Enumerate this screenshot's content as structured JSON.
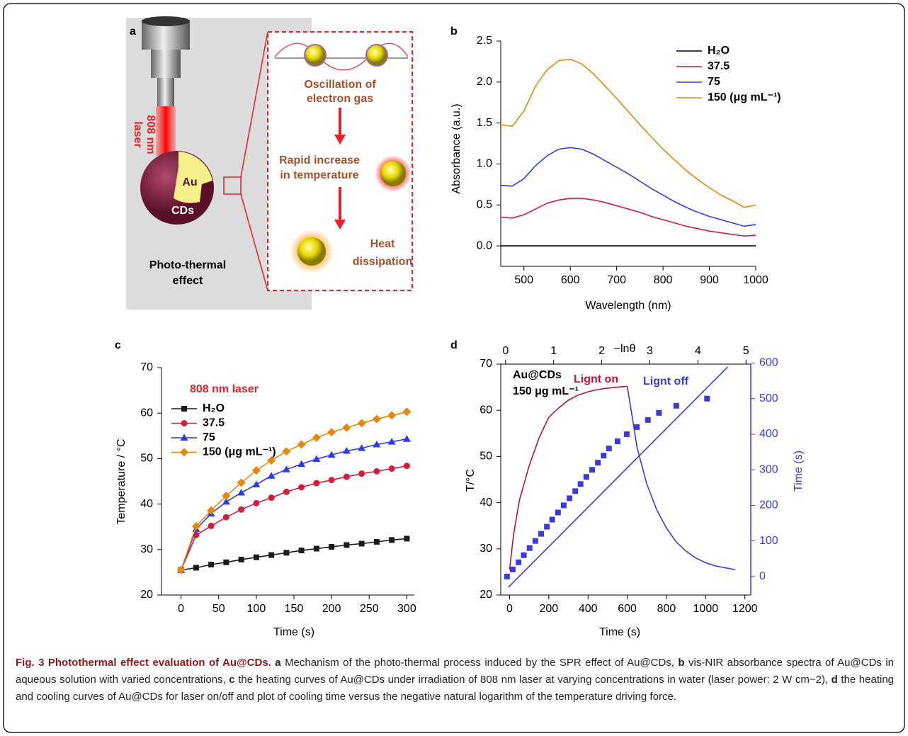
{
  "diagram_a": {
    "panel": "a",
    "laser": [
      "808 nm",
      "laser"
    ],
    "core": "Au",
    "shell": "CDs",
    "effect": [
      "Photo-thermal",
      "effect"
    ],
    "steps": [
      [
        "Oscillation of",
        "electron gas"
      ],
      [
        "Rapid increase",
        "in temperature"
      ],
      [
        "Heat",
        "dissipation"
      ]
    ]
  },
  "chart_data": [
    {
      "type": "line",
      "panel": "b",
      "xlabel": "Wavelength (nm)",
      "ylabel": "Absorbance (a.u.)",
      "legend": "upper right",
      "xlim": [
        450,
        1000
      ],
      "xticks": [
        500,
        600,
        700,
        800,
        900,
        1000
      ],
      "ylim": [
        -0.25,
        2.5
      ],
      "yticks": [
        {
          "value": 0,
          "label": "0.0"
        },
        0.5,
        {
          "value": 1,
          "label": "1.0"
        },
        1.5,
        {
          "value": 2,
          "label": "2.0"
        },
        2.5
      ],
      "x": [
        450,
        475,
        500,
        525,
        550,
        575,
        600,
        625,
        650,
        675,
        700,
        725,
        750,
        775,
        800,
        825,
        850,
        875,
        900,
        925,
        950,
        975,
        1000
      ],
      "series": [
        {
          "name": "H₂O",
          "color": "#000000",
          "values": [
            0,
            0,
            0,
            0,
            0,
            0,
            0,
            0,
            0,
            0,
            0,
            0,
            0,
            0,
            0,
            0,
            0,
            0,
            0,
            0,
            0,
            0,
            0
          ]
        },
        {
          "name": "37.5",
          "color": "#d41c3c",
          "values": [
            0.35,
            0.34,
            0.38,
            0.45,
            0.52,
            0.56,
            0.58,
            0.58,
            0.56,
            0.53,
            0.49,
            0.45,
            0.41,
            0.36,
            0.32,
            0.28,
            0.24,
            0.21,
            0.18,
            0.16,
            0.14,
            0.12,
            0.13
          ]
        },
        {
          "name": "75",
          "color": "#2b3bea",
          "values": [
            0.74,
            0.73,
            0.82,
            0.98,
            1.1,
            1.18,
            1.2,
            1.18,
            1.12,
            1.04,
            0.96,
            0.88,
            0.79,
            0.7,
            0.62,
            0.54,
            0.47,
            0.41,
            0.36,
            0.32,
            0.28,
            0.24,
            0.26
          ]
        },
        {
          "name": "150 (μg mL⁻¹)",
          "color": "#e8860c",
          "values": [
            1.48,
            1.46,
            1.65,
            1.95,
            2.15,
            2.26,
            2.28,
            2.22,
            2.1,
            1.95,
            1.8,
            1.64,
            1.48,
            1.33,
            1.18,
            1.05,
            0.92,
            0.81,
            0.71,
            0.62,
            0.55,
            0.47,
            0.5
          ]
        }
      ]
    },
    {
      "type": "line",
      "panel": "c",
      "xlabel": "Time (s)",
      "ylabel": "Temperature / °C",
      "legend": "upper left",
      "legend_title": "808 nm laser",
      "legend_title_color": "#e8202a",
      "xlim": [
        -26,
        310
      ],
      "xticks": [
        0,
        50,
        100,
        150,
        200,
        250,
        300
      ],
      "ylim": [
        20,
        70
      ],
      "yticks": [
        20,
        30,
        40,
        50,
        60,
        70
      ],
      "x": [
        0,
        20,
        40,
        60,
        80,
        100,
        120,
        140,
        160,
        180,
        200,
        220,
        240,
        260,
        280,
        300
      ],
      "series": [
        {
          "name": "H₂O",
          "color": "#1a1a1a",
          "marker": "square",
          "values": [
            25.5,
            26,
            26.7,
            27.2,
            27.8,
            28.3,
            28.8,
            29.3,
            29.8,
            30.2,
            30.6,
            31.0,
            31.3,
            31.7,
            32.1,
            32.4
          ]
        },
        {
          "name": "37.5",
          "color": "#d41c3c",
          "marker": "circle",
          "values": [
            25.5,
            33.2,
            35.2,
            37.1,
            38.8,
            40.2,
            41.4,
            42.7,
            43.7,
            44.6,
            45.3,
            46.0,
            46.7,
            47.2,
            47.8,
            48.4
          ]
        },
        {
          "name": "75",
          "color": "#2b3bea",
          "marker": "triangle",
          "values": [
            25.5,
            34.5,
            37.9,
            40.5,
            42.5,
            44.3,
            46.2,
            47.6,
            48.8,
            49.9,
            50.8,
            51.7,
            52.3,
            53.1,
            53.7,
            54.3
          ]
        },
        {
          "name": "150 (μg mL⁻¹)",
          "color": "#e8860c",
          "marker": "diamond",
          "values": [
            25.5,
            35.1,
            38.6,
            41.8,
            44.7,
            47.4,
            49.6,
            51.6,
            53.1,
            54.6,
            55.8,
            56.8,
            57.8,
            58.7,
            59.5,
            60.3
          ]
        }
      ]
    },
    {
      "type": "line",
      "panel": "d",
      "xlabel": "Time (s)",
      "ylabel": "T/°C",
      "x2label": "−lnθ",
      "y2label": "Time (s)",
      "y2color": "#3b3bdc",
      "xlim": [
        -45,
        1230
      ],
      "xticks": [
        0,
        200,
        400,
        600,
        800,
        1000,
        1200
      ],
      "ylim": [
        20,
        70
      ],
      "yticks": [
        20,
        30,
        40,
        50,
        60,
        70
      ],
      "x2lim": [
        -0.1,
        5.1
      ],
      "x2ticks": [
        0,
        1,
        2,
        3,
        4,
        5
      ],
      "y2lim": [
        -52,
        597
      ],
      "y2ticks": [
        0,
        100,
        200,
        300,
        400,
        500,
        600
      ],
      "annotations": [
        {
          "text": "Au@CDs",
          "color": "#000000"
        },
        {
          "text": "150 μg mL⁻¹",
          "color": "#000000"
        },
        {
          "text": "Lignt on",
          "color": "#c0143c"
        },
        {
          "text": "Lignt off",
          "color": "#3b3bdc"
        }
      ],
      "series": [
        {
          "style": "line",
          "color": "#b0163a",
          "x": [
            0,
            20,
            50,
            100,
            150,
            200,
            250,
            300,
            350,
            400,
            450,
            500,
            550,
            600
          ],
          "values": [
            25.5,
            33,
            40.5,
            48,
            54,
            58.5,
            60.5,
            62.2,
            63.3,
            64,
            64.5,
            64.8,
            65,
            65.2
          ]
        },
        {
          "style": "line",
          "color": "#3b3bdc",
          "x": [
            600,
            620,
            650,
            700,
            750,
            800,
            850,
            900,
            950,
            1000,
            1050,
            1100,
            1150
          ],
          "values": [
            65.2,
            60,
            52,
            44,
            38.5,
            34.5,
            31.5,
            29.5,
            28,
            27,
            26.3,
            25.9,
            25.5
          ]
        },
        {
          "style": "marker",
          "color": "#3b3bdc",
          "xaxis": "x2",
          "axis": "y2",
          "x": [
            0.03,
            0.15,
            0.27,
            0.38,
            0.5,
            0.62,
            0.74,
            0.86,
            0.97,
            1.09,
            1.21,
            1.33,
            1.45,
            1.56,
            1.68,
            1.8,
            1.92,
            2.04,
            2.15,
            2.33,
            2.52,
            2.73,
            2.96,
            3.19,
            3.55,
            4.19
          ],
          "values": [
            0,
            20,
            40,
            60,
            80,
            100,
            120,
            140,
            160,
            180,
            200,
            220,
            240,
            260,
            280,
            300,
            320,
            340,
            360,
            380,
            400,
            420,
            440,
            460,
            480,
            500
          ]
        },
        {
          "style": "line",
          "color": "#3b3bdc",
          "xaxis": "x2",
          "axis": "y2",
          "x": [
            0.06,
            4.62
          ],
          "values": [
            -30,
            589
          ]
        }
      ]
    }
  ],
  "caption": {
    "title": "Fig. 3 Photothermal effect evaluation of Au@CDs.",
    "parts": [
      {
        "label": "a",
        "text": "Mechanism of the photo-thermal process induced by the SPR effect of Au@CDs,"
      },
      {
        "label": "b",
        "text": "vis-NIR absorbance spectra of Au@CDs in aqueous solution with varied concentrations,"
      },
      {
        "label": "c",
        "text": "the heating curves of Au@CDs under irradiation of 808 nm laser at varying concentrations in water (laser power: 2 W cm−2),"
      },
      {
        "label": "d",
        "text": "the heating and cooling curves of Au@CDs for laser on/off and plot of cooling time versus the negative natural logarithm of the temperature driving force."
      }
    ]
  }
}
